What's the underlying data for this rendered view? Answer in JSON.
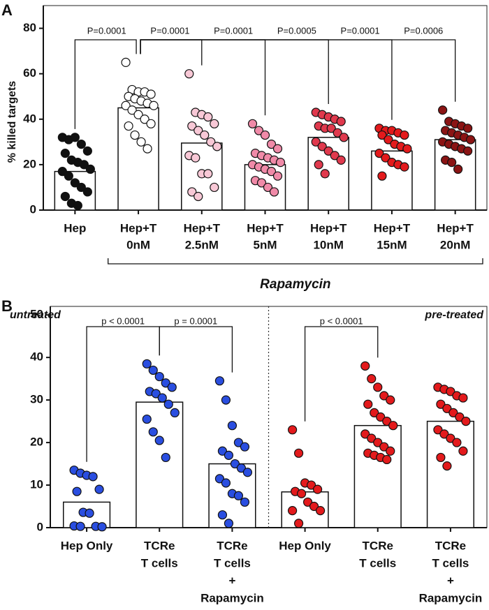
{
  "chart_data": [
    {
      "type": "bar_scatter",
      "panel": "A",
      "ylabel": "% killed targets",
      "categories": [
        [
          "Hep"
        ],
        [
          "Hep+T",
          "0nM"
        ],
        [
          "Hep+T",
          "2.5nM"
        ],
        [
          "Hep+T",
          "5nM"
        ],
        [
          "Hep+T",
          "10nM"
        ],
        [
          "Hep+T",
          "15nM"
        ],
        [
          "Hep+T",
          "20nM"
        ]
      ],
      "group_label": "Rapamycin",
      "values": [
        17,
        45,
        29.5,
        20,
        32,
        26,
        31
      ],
      "colors": [
        "#111111",
        "#ffffff",
        "#f8c8d6",
        "#f08aa8",
        "#e0394d",
        "#e31a1c",
        "#8b1414"
      ],
      "points": [
        [
          32,
          31,
          32,
          29,
          26,
          25,
          22,
          21,
          20,
          18,
          17,
          15,
          12,
          10,
          8,
          6,
          3,
          2
        ],
        [
          65,
          53,
          52,
          52,
          51,
          50,
          49,
          48,
          47,
          46,
          46,
          44,
          42,
          40,
          38,
          37,
          33,
          30,
          27
        ],
        [
          60,
          43,
          42,
          41,
          38,
          37,
          35,
          33,
          30,
          28,
          24,
          23,
          16,
          16,
          10,
          8,
          6
        ],
        [
          38,
          35,
          33,
          29,
          27,
          25,
          24,
          23,
          22,
          21,
          20,
          19,
          18,
          17,
          15,
          13,
          12,
          10,
          8
        ],
        [
          43,
          42,
          41,
          40,
          39,
          37,
          36,
          36,
          34,
          32,
          30,
          28,
          26,
          24,
          22,
          20,
          16
        ],
        [
          36,
          35,
          35,
          34,
          33,
          33,
          31,
          29,
          28,
          27,
          25,
          23,
          21,
          20,
          19,
          15
        ],
        [
          44,
          39,
          38,
          37,
          36,
          35,
          34,
          33,
          32,
          31,
          30,
          29,
          28,
          27,
          26,
          22,
          21,
          18
        ]
      ],
      "comparisons": [
        "P=0.0001",
        "P=0.0001",
        "P=0.0001",
        "P=0.0005",
        "P=0.0001",
        "P=0.0006"
      ],
      "ylim": [
        0,
        90
      ],
      "yticks": [
        0,
        20,
        40,
        60,
        80
      ],
      "grid": false
    },
    {
      "type": "bar_scatter",
      "panel": "B",
      "categories": [
        [
          "Hep Only"
        ],
        [
          "TCRe",
          "T cells"
        ],
        [
          "TCRe",
          "T cells",
          "+",
          "Rapamycin"
        ],
        [
          "Hep Only"
        ],
        [
          "TCRe",
          "T cells"
        ],
        [
          "TCRe",
          "T cells",
          "+",
          "Rapamycin"
        ]
      ],
      "sections": [
        "untreated",
        "pre-treated"
      ],
      "values": [
        6,
        29.5,
        15,
        8.4,
        24,
        25
      ],
      "colors": [
        "#2a4ee0",
        "#2a4ee0",
        "#2a4ee0",
        "#e31a1c",
        "#e31a1c",
        "#e31a1c"
      ],
      "points": [
        [
          13.5,
          12.8,
          12.3,
          12,
          9,
          8.5,
          3.6,
          3.4,
          0.3,
          0.2,
          0.4,
          0.3
        ],
        [
          38.5,
          37,
          35.5,
          34,
          33,
          32,
          31.5,
          30.5,
          29,
          27,
          25.5,
          22.5,
          20.5,
          16.5
        ],
        [
          34.5,
          30,
          24,
          20,
          19,
          18,
          17,
          15,
          14,
          13,
          11.5,
          10.5,
          8,
          7.5,
          6,
          3,
          1
        ],
        [
          23,
          17.5,
          10.5,
          10,
          9,
          8.5,
          8,
          6,
          5,
          4,
          4,
          1
        ],
        [
          38,
          35,
          33,
          31,
          30,
          29,
          27,
          26,
          25,
          24,
          22,
          21,
          20,
          19,
          18,
          17.5,
          17,
          16.5,
          16
        ],
        [
          33,
          32.5,
          32,
          31,
          30.5,
          29,
          28,
          27,
          26,
          25,
          23,
          22,
          21,
          20,
          18,
          16.5,
          14.5
        ]
      ],
      "comparisons": [
        "p < 0.0001",
        "p = 0.0001",
        "p < 0.0001"
      ],
      "ylim": [
        0,
        52
      ],
      "yticks": [
        0,
        10,
        20,
        30,
        40,
        50
      ],
      "grid": false
    }
  ]
}
